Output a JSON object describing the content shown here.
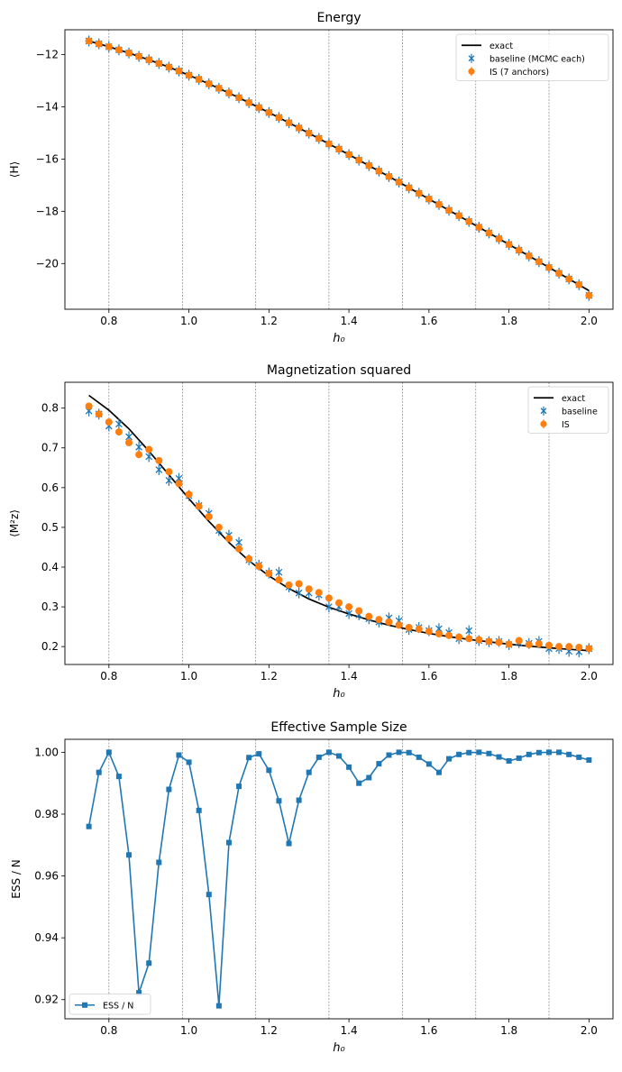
{
  "chart_data": [
    {
      "type": "line",
      "title": "Energy",
      "xlabel": "h₀",
      "ylabel": "⟨H⟩",
      "xlim": [
        0.69,
        2.06
      ],
      "ylim": [
        -21.75,
        -11.05
      ],
      "xticks": [
        0.8,
        1.0,
        1.2,
        1.4,
        1.6,
        1.8,
        2.0
      ],
      "xtick_labels": [
        "0.8",
        "1.0",
        "1.2",
        "1.4",
        "1.6",
        "1.8",
        "2.0"
      ],
      "yticks": [
        -20,
        -18,
        -16,
        -14,
        -12
      ],
      "ytick_labels": [
        "−20",
        "−18",
        "−16",
        "−14",
        "−12"
      ],
      "anchor_lines": [
        0.8,
        0.984,
        1.167,
        1.35,
        1.534,
        1.717,
        1.9
      ],
      "legend": "top-right",
      "series": [
        {
          "name": "exact",
          "kind": "line",
          "color": "#000000",
          "x": [
            0.75,
            0.8,
            0.85,
            0.9,
            0.95,
            1.0,
            1.05,
            1.1,
            1.15,
            1.2,
            1.25,
            1.3,
            1.35,
            1.4,
            1.45,
            1.5,
            1.55,
            1.6,
            1.65,
            1.7,
            1.75,
            1.8,
            1.85,
            1.9,
            1.95,
            2.0
          ],
          "y": [
            -11.48,
            -11.7,
            -11.94,
            -12.2,
            -12.48,
            -12.79,
            -13.12,
            -13.47,
            -13.84,
            -14.22,
            -14.61,
            -15.01,
            -15.42,
            -15.83,
            -16.25,
            -16.67,
            -17.1,
            -17.53,
            -17.96,
            -18.39,
            -18.83,
            -19.27,
            -19.71,
            -20.15,
            -20.59,
            -21.04
          ]
        },
        {
          "name": "baseline (MCMC each)",
          "kind": "errorbar-x",
          "color": "#1f77b4",
          "x": [
            0.75,
            0.775,
            0.8,
            0.825,
            0.85,
            0.875,
            0.9,
            0.925,
            0.95,
            0.975,
            1.0,
            1.025,
            1.05,
            1.075,
            1.1,
            1.125,
            1.15,
            1.175,
            1.2,
            1.225,
            1.25,
            1.275,
            1.3,
            1.325,
            1.35,
            1.375,
            1.4,
            1.425,
            1.45,
            1.475,
            1.5,
            1.525,
            1.55,
            1.575,
            1.6,
            1.625,
            1.65,
            1.675,
            1.7,
            1.725,
            1.75,
            1.775,
            1.8,
            1.825,
            1.85,
            1.875,
            1.9,
            1.925,
            1.95,
            1.975,
            2.0
          ],
          "y": [
            -11.48,
            -11.59,
            -11.7,
            -11.82,
            -11.94,
            -12.07,
            -12.2,
            -12.34,
            -12.48,
            -12.63,
            -12.79,
            -12.95,
            -13.12,
            -13.29,
            -13.47,
            -13.65,
            -13.84,
            -14.03,
            -14.22,
            -14.41,
            -14.61,
            -14.81,
            -15.01,
            -15.21,
            -15.42,
            -15.62,
            -15.83,
            -16.04,
            -16.25,
            -16.46,
            -16.67,
            -16.88,
            -17.1,
            -17.31,
            -17.53,
            -17.74,
            -17.96,
            -18.17,
            -18.39,
            -18.61,
            -18.83,
            -19.05,
            -19.27,
            -19.49,
            -19.71,
            -19.93,
            -20.15,
            -20.37,
            -20.59,
            -20.81,
            -21.22
          ]
        },
        {
          "name": "IS (7 anchors)",
          "kind": "errorbar-o",
          "color": "#ff7f0e",
          "x": [
            0.75,
            0.775,
            0.8,
            0.825,
            0.85,
            0.875,
            0.9,
            0.925,
            0.95,
            0.975,
            1.0,
            1.025,
            1.05,
            1.075,
            1.1,
            1.125,
            1.15,
            1.175,
            1.2,
            1.225,
            1.25,
            1.275,
            1.3,
            1.325,
            1.35,
            1.375,
            1.4,
            1.425,
            1.45,
            1.475,
            1.5,
            1.525,
            1.55,
            1.575,
            1.6,
            1.625,
            1.65,
            1.675,
            1.7,
            1.725,
            1.75,
            1.775,
            1.8,
            1.825,
            1.85,
            1.875,
            1.9,
            1.925,
            1.95,
            1.975,
            2.0
          ],
          "y": [
            -11.48,
            -11.59,
            -11.7,
            -11.82,
            -11.94,
            -12.07,
            -12.2,
            -12.34,
            -12.48,
            -12.63,
            -12.79,
            -12.95,
            -13.12,
            -13.29,
            -13.47,
            -13.65,
            -13.84,
            -14.03,
            -14.22,
            -14.41,
            -14.61,
            -14.81,
            -15.01,
            -15.21,
            -15.42,
            -15.62,
            -15.83,
            -16.04,
            -16.25,
            -16.46,
            -16.67,
            -16.88,
            -17.1,
            -17.31,
            -17.53,
            -17.74,
            -17.96,
            -18.17,
            -18.39,
            -18.61,
            -18.83,
            -19.05,
            -19.27,
            -19.49,
            -19.71,
            -19.93,
            -20.15,
            -20.37,
            -20.59,
            -20.81,
            -21.22
          ]
        }
      ]
    },
    {
      "type": "line",
      "title": "Magnetization squared",
      "xlabel": "h₀",
      "ylabel": "⟨M²z⟩",
      "xlim": [
        0.69,
        2.06
      ],
      "ylim": [
        0.155,
        0.865
      ],
      "xticks": [
        0.8,
        1.0,
        1.2,
        1.4,
        1.6,
        1.8,
        2.0
      ],
      "xtick_labels": [
        "0.8",
        "1.0",
        "1.2",
        "1.4",
        "1.6",
        "1.8",
        "2.0"
      ],
      "yticks": [
        0.2,
        0.3,
        0.4,
        0.5,
        0.6,
        0.7,
        0.8
      ],
      "ytick_labels": [
        "0.2",
        "0.3",
        "0.4",
        "0.5",
        "0.6",
        "0.7",
        "0.8"
      ],
      "anchor_lines": [
        0.8,
        0.984,
        1.167,
        1.35,
        1.534,
        1.717,
        1.9
      ],
      "legend": "top-right",
      "series": [
        {
          "name": "exact",
          "kind": "line",
          "color": "#000000",
          "x": [
            0.75,
            0.8,
            0.85,
            0.9,
            0.95,
            1.0,
            1.05,
            1.1,
            1.15,
            1.2,
            1.25,
            1.3,
            1.35,
            1.4,
            1.45,
            1.5,
            1.55,
            1.6,
            1.65,
            1.7,
            1.75,
            1.8,
            1.85,
            1.9,
            1.95,
            2.0
          ],
          "y": [
            0.832,
            0.795,
            0.748,
            0.692,
            0.632,
            0.572,
            0.515,
            0.462,
            0.416,
            0.378,
            0.346,
            0.32,
            0.299,
            0.282,
            0.267,
            0.254,
            0.243,
            0.233,
            0.225,
            0.218,
            0.212,
            0.206,
            0.201,
            0.197,
            0.193,
            0.19
          ]
        },
        {
          "name": "baseline",
          "kind": "errorbar-x",
          "color": "#1f77b4",
          "x": [
            0.75,
            0.775,
            0.8,
            0.825,
            0.85,
            0.875,
            0.9,
            0.925,
            0.95,
            0.975,
            1.0,
            1.025,
            1.05,
            1.075,
            1.1,
            1.125,
            1.15,
            1.175,
            1.2,
            1.225,
            1.25,
            1.275,
            1.3,
            1.325,
            1.35,
            1.375,
            1.4,
            1.425,
            1.45,
            1.475,
            1.5,
            1.525,
            1.55,
            1.575,
            1.6,
            1.625,
            1.65,
            1.675,
            1.7,
            1.725,
            1.75,
            1.775,
            1.8,
            1.825,
            1.85,
            1.875,
            1.9,
            1.925,
            1.95,
            1.975,
            2.0
          ],
          "y": [
            0.793,
            0.785,
            0.755,
            0.76,
            0.728,
            0.702,
            0.678,
            0.645,
            0.618,
            0.623,
            0.58,
            0.555,
            0.535,
            0.492,
            0.48,
            0.462,
            0.418,
            0.405,
            0.385,
            0.387,
            0.35,
            0.335,
            0.335,
            0.33,
            0.3,
            0.3,
            0.283,
            0.28,
            0.27,
            0.262,
            0.272,
            0.265,
            0.243,
            0.248,
            0.24,
            0.245,
            0.235,
            0.22,
            0.24,
            0.215,
            0.212,
            0.213,
            0.205,
            0.21,
            0.208,
            0.213,
            0.195,
            0.195,
            0.188,
            0.187,
            0.195
          ]
        },
        {
          "name": "IS",
          "kind": "errorbar-o",
          "color": "#ff7f0e",
          "x": [
            0.75,
            0.775,
            0.8,
            0.825,
            0.85,
            0.875,
            0.9,
            0.925,
            0.95,
            0.975,
            1.0,
            1.025,
            1.05,
            1.075,
            1.1,
            1.125,
            1.15,
            1.175,
            1.2,
            1.225,
            1.25,
            1.275,
            1.3,
            1.325,
            1.35,
            1.375,
            1.4,
            1.425,
            1.45,
            1.475,
            1.5,
            1.525,
            1.55,
            1.575,
            1.6,
            1.625,
            1.65,
            1.675,
            1.7,
            1.725,
            1.75,
            1.775,
            1.8,
            1.825,
            1.85,
            1.875,
            1.9,
            1.925,
            1.95,
            1.975,
            2.0
          ],
          "y": [
            0.805,
            0.785,
            0.765,
            0.74,
            0.713,
            0.683,
            0.696,
            0.668,
            0.64,
            0.61,
            0.583,
            0.553,
            0.527,
            0.5,
            0.472,
            0.446,
            0.421,
            0.402,
            0.384,
            0.368,
            0.355,
            0.358,
            0.345,
            0.336,
            0.322,
            0.31,
            0.3,
            0.29,
            0.276,
            0.268,
            0.262,
            0.254,
            0.248,
            0.244,
            0.238,
            0.232,
            0.228,
            0.224,
            0.22,
            0.217,
            0.213,
            0.211,
            0.206,
            0.215,
            0.205,
            0.207,
            0.203,
            0.2,
            0.2,
            0.198,
            0.195
          ]
        }
      ]
    },
    {
      "type": "line",
      "title": "Effective Sample Size",
      "xlabel": "h₀",
      "ylabel": "ESS / N",
      "xlim": [
        0.69,
        2.06
      ],
      "ylim": [
        0.9138,
        1.0042
      ],
      "xticks": [
        0.8,
        1.0,
        1.2,
        1.4,
        1.6,
        1.8,
        2.0
      ],
      "xtick_labels": [
        "0.8",
        "1.0",
        "1.2",
        "1.4",
        "1.6",
        "1.8",
        "2.0"
      ],
      "yticks": [
        0.92,
        0.94,
        0.96,
        0.98,
        1.0
      ],
      "ytick_labels": [
        "0.92",
        "0.94",
        "0.96",
        "0.98",
        "1.00"
      ],
      "anchor_lines": [
        0.8,
        0.984,
        1.167,
        1.35,
        1.534,
        1.717,
        1.9
      ],
      "legend": "bottom-left",
      "series": [
        {
          "name": "ESS / N",
          "kind": "line-square",
          "color": "#1f77b4",
          "x": [
            0.75,
            0.775,
            0.8,
            0.825,
            0.85,
            0.875,
            0.9,
            0.925,
            0.95,
            0.975,
            1.0,
            1.025,
            1.05,
            1.075,
            1.1,
            1.125,
            1.15,
            1.175,
            1.2,
            1.225,
            1.25,
            1.275,
            1.3,
            1.325,
            1.35,
            1.375,
            1.4,
            1.425,
            1.45,
            1.475,
            1.5,
            1.525,
            1.55,
            1.575,
            1.6,
            1.625,
            1.65,
            1.675,
            1.7,
            1.725,
            1.75,
            1.775,
            1.8,
            1.825,
            1.85,
            1.875,
            1.9,
            1.925,
            1.95,
            1.975,
            2.0
          ],
          "y": [
            0.976,
            0.9935,
            1.0,
            0.9922,
            0.9668,
            0.9222,
            0.9318,
            0.9644,
            0.988,
            0.9991,
            0.9968,
            0.9812,
            0.954,
            0.918,
            0.9708,
            0.989,
            0.9983,
            0.9995,
            0.9942,
            0.9843,
            0.9705,
            0.9845,
            0.9935,
            0.9984,
            1.0,
            0.9988,
            0.9952,
            0.99,
            0.9918,
            0.9963,
            0.9991,
            1.0,
            0.9999,
            0.9984,
            0.9962,
            0.9935,
            0.9979,
            0.9993,
            0.9999,
            1.0,
            0.9996,
            0.9985,
            0.9972,
            0.9981,
            0.9993,
            0.9999,
            1.0,
            1.0,
            0.9993,
            0.9984,
            0.9975
          ]
        }
      ]
    }
  ]
}
